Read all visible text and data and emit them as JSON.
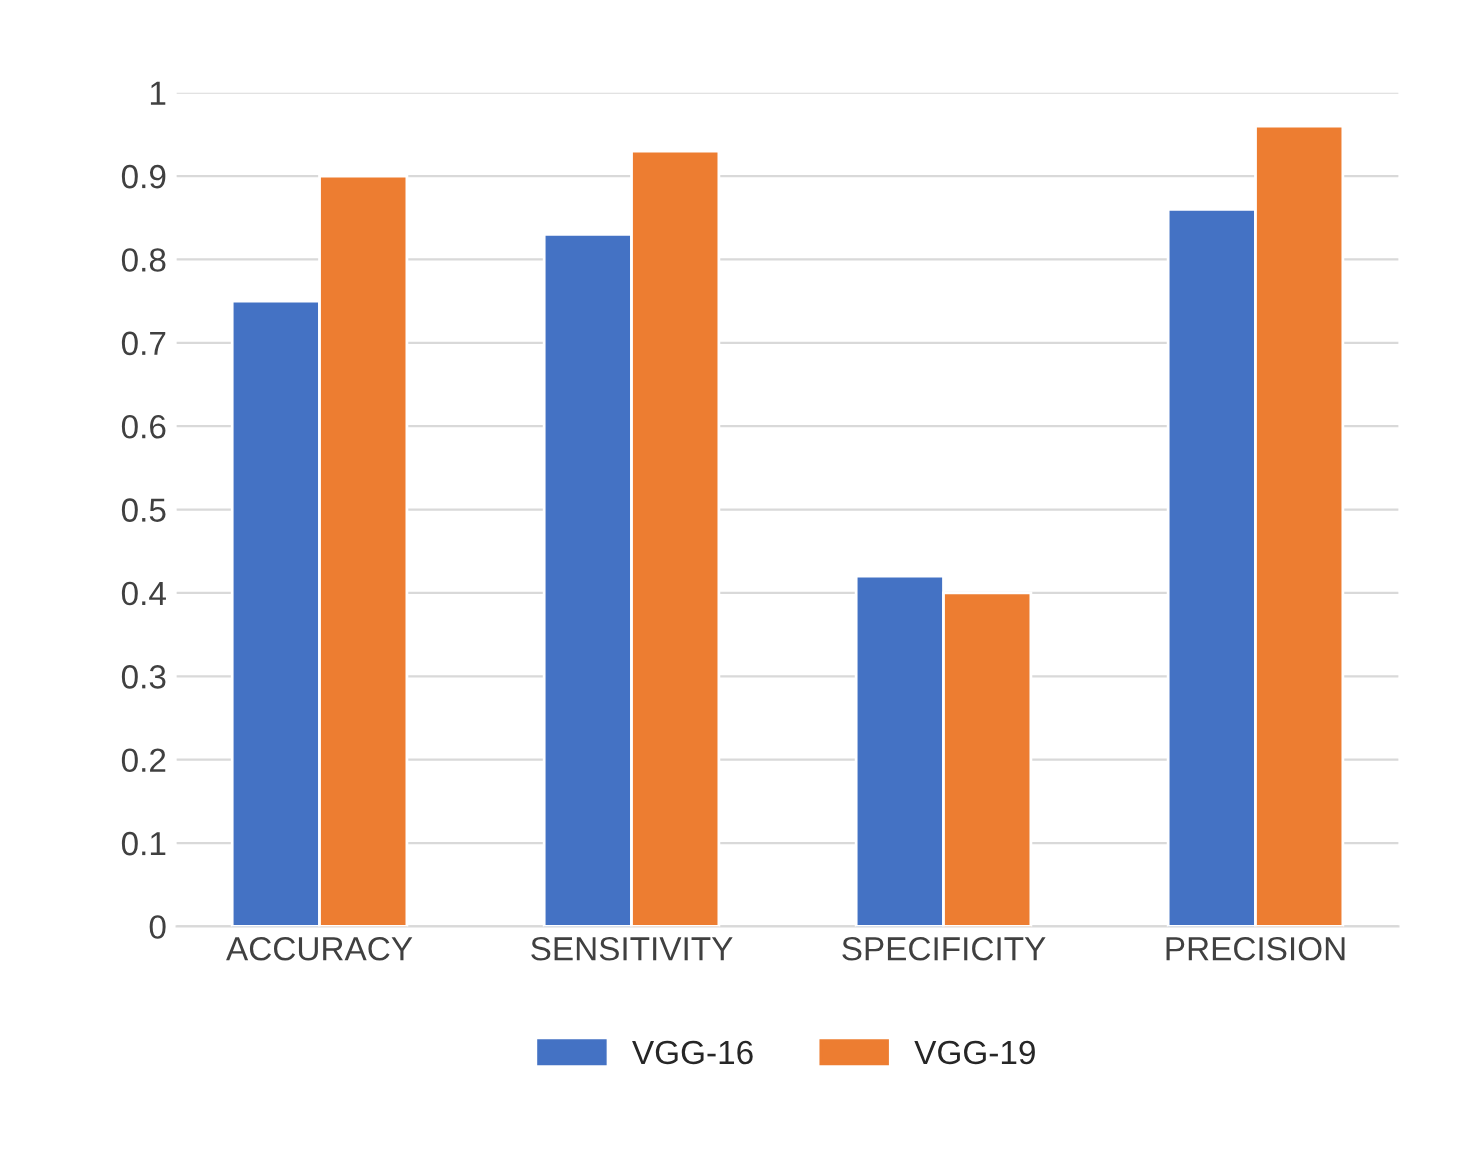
{
  "chart_data": {
    "type": "bar",
    "categories": [
      "ACCURACY",
      "SENSITIVITY",
      "SPECIFICITY",
      "PRECISION"
    ],
    "series": [
      {
        "name": "VGG-16",
        "color": "#4472c4",
        "values": [
          0.75,
          0.83,
          0.42,
          0.86
        ]
      },
      {
        "name": "VGG-19",
        "color": "#ed7d31",
        "values": [
          0.9,
          0.93,
          0.4,
          0.96
        ]
      }
    ],
    "ylim": [
      0,
      1
    ],
    "yticks": [
      0,
      0.1,
      0.2,
      0.3,
      0.4,
      0.5,
      0.6,
      0.7,
      0.8,
      0.9,
      1
    ],
    "grid": "y",
    "legend": "bottom"
  }
}
